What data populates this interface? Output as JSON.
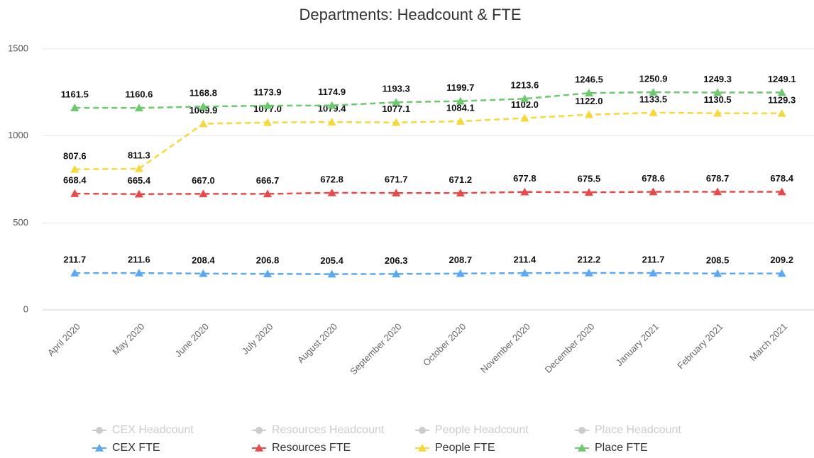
{
  "chart_data": {
    "type": "line",
    "title": "Departments: Headcount & FTE",
    "categories": [
      "April 2020",
      "May 2020",
      "June 2020",
      "July 2020",
      "August 2020",
      "September 2020",
      "October 2020",
      "November 2020",
      "December 2020",
      "January 2021",
      "February 2021",
      "March 2021"
    ],
    "ylim": [
      0,
      1500
    ],
    "yticks": [
      0,
      500,
      1000,
      1500
    ],
    "grid": true,
    "hidden_series": [
      {
        "name": "CEX Headcount",
        "color": "#cccccc"
      },
      {
        "name": "Resources Headcount",
        "color": "#cccccc"
      },
      {
        "name": "People Headcount",
        "color": "#cccccc"
      },
      {
        "name": "Place Headcount",
        "color": "#cccccc"
      }
    ],
    "series": [
      {
        "name": "CEX FTE",
        "color": "#5ba8f5",
        "values": [
          211.7,
          211.6,
          208.4,
          206.8,
          205.4,
          206.3,
          208.7,
          211.4,
          212.2,
          211.7,
          208.5,
          209.2
        ],
        "value_labels": [
          "211.7",
          "211.6",
          "208.4",
          "206.8",
          "205.4",
          "206.3",
          "208.7",
          "211.4",
          "212.2",
          "211.7",
          "208.5",
          "209.2"
        ]
      },
      {
        "name": "Resources FTE",
        "color": "#e84a4a",
        "values": [
          668.4,
          665.4,
          667.0,
          666.7,
          672.8,
          671.7,
          671.2,
          677.8,
          675.5,
          678.6,
          678.7,
          678.4
        ],
        "value_labels": [
          "668.4",
          "665.4",
          "667.0",
          "666.7",
          "672.8",
          "671.7",
          "671.2",
          "677.8",
          "675.5",
          "678.6",
          "678.7",
          "678.4"
        ]
      },
      {
        "name": "People FTE",
        "color": "#f5d83a",
        "values": [
          807.6,
          811.3,
          1069.9,
          1077.0,
          1079.4,
          1077.1,
          1084.1,
          1102.0,
          1122.0,
          1133.5,
          1130.5,
          1129.3
        ],
        "value_labels": [
          "807.6",
          "811.3",
          "1069.9",
          "1077.0",
          "1079.4",
          "1077.1",
          "1084.1",
          "1102.0",
          "1122.0",
          "1133.5",
          "1130.5",
          "1129.3"
        ]
      },
      {
        "name": "Place FTE",
        "color": "#6cc96c",
        "values": [
          1161.5,
          1160.6,
          1168.8,
          1173.9,
          1174.9,
          1193.3,
          1199.7,
          1213.6,
          1246.5,
          1250.9,
          1249.3,
          1249.1
        ],
        "value_labels": [
          "1161.5",
          "1160.6",
          "1168.8",
          "1173.9",
          "1174.9",
          "1193.3",
          "1199.7",
          "1213.6",
          "1246.5",
          "1250.9",
          "1249.3",
          "1249.1"
        ]
      }
    ]
  }
}
